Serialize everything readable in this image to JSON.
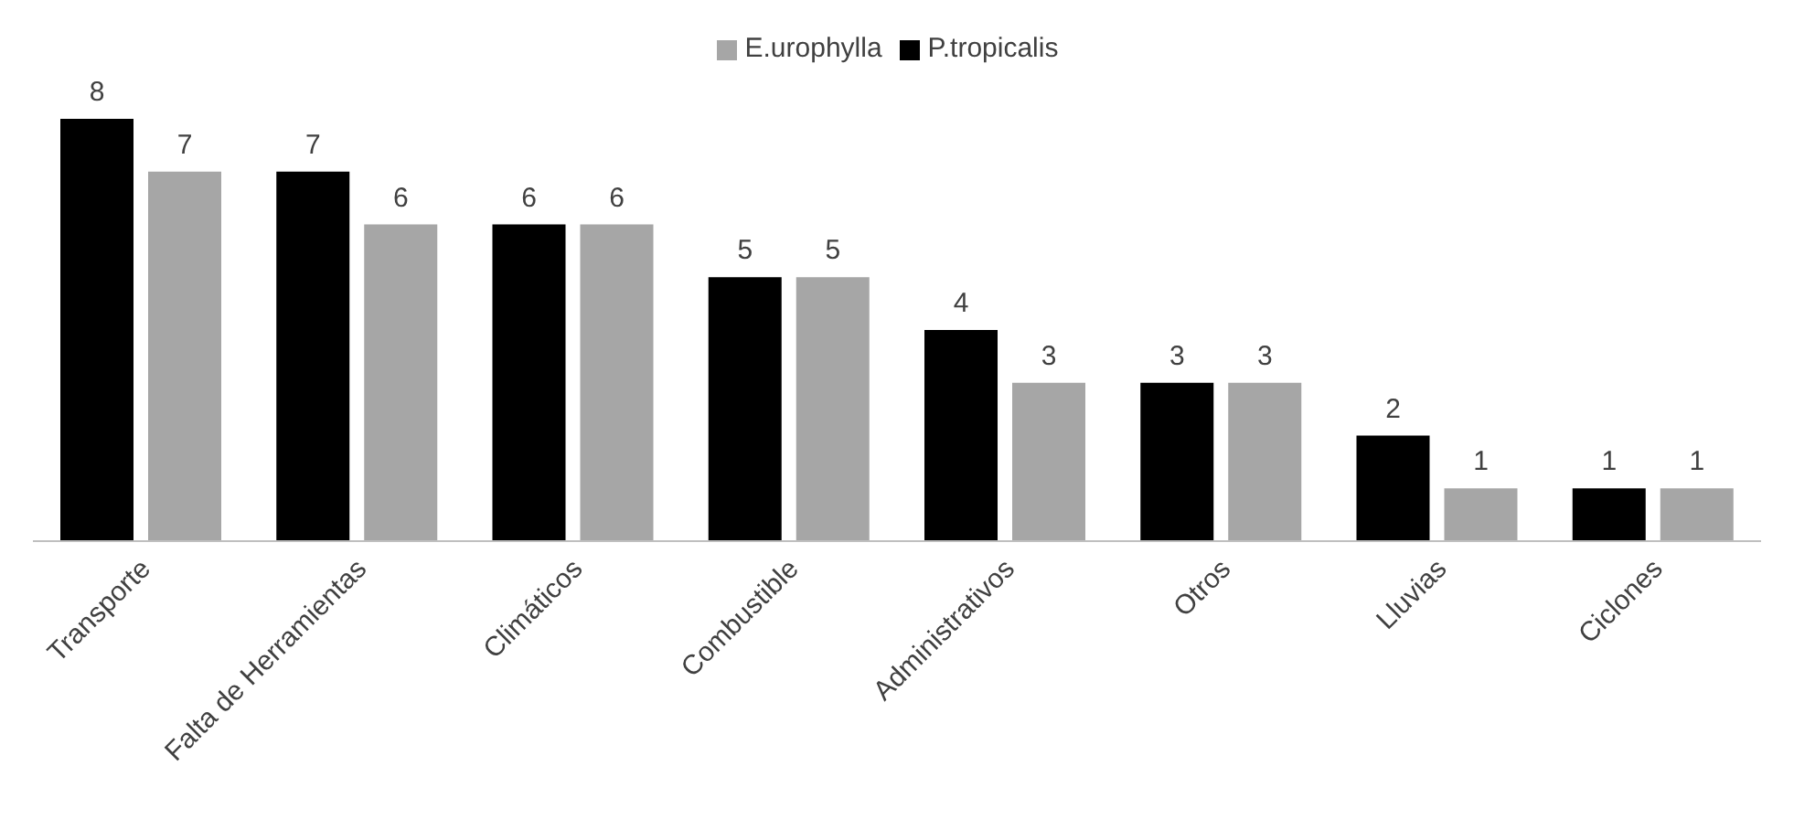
{
  "chart_data": {
    "type": "bar",
    "categories": [
      "Transporte",
      "Falta de Herramientas",
      "Climáticos",
      "Combustible",
      "Administrativos",
      "Otros",
      "Lluvias",
      "Ciclones"
    ],
    "series": [
      {
        "name": "P.tropicalis",
        "color": "#000000",
        "values": [
          8,
          7,
          6,
          5,
          4,
          3,
          2,
          1
        ]
      },
      {
        "name": "E.urophylla",
        "color": "#a6a6a6",
        "values": [
          7,
          6,
          6,
          5,
          3,
          3,
          1,
          1
        ]
      }
    ],
    "data_labels": true,
    "legend": "top",
    "grid": false
  }
}
